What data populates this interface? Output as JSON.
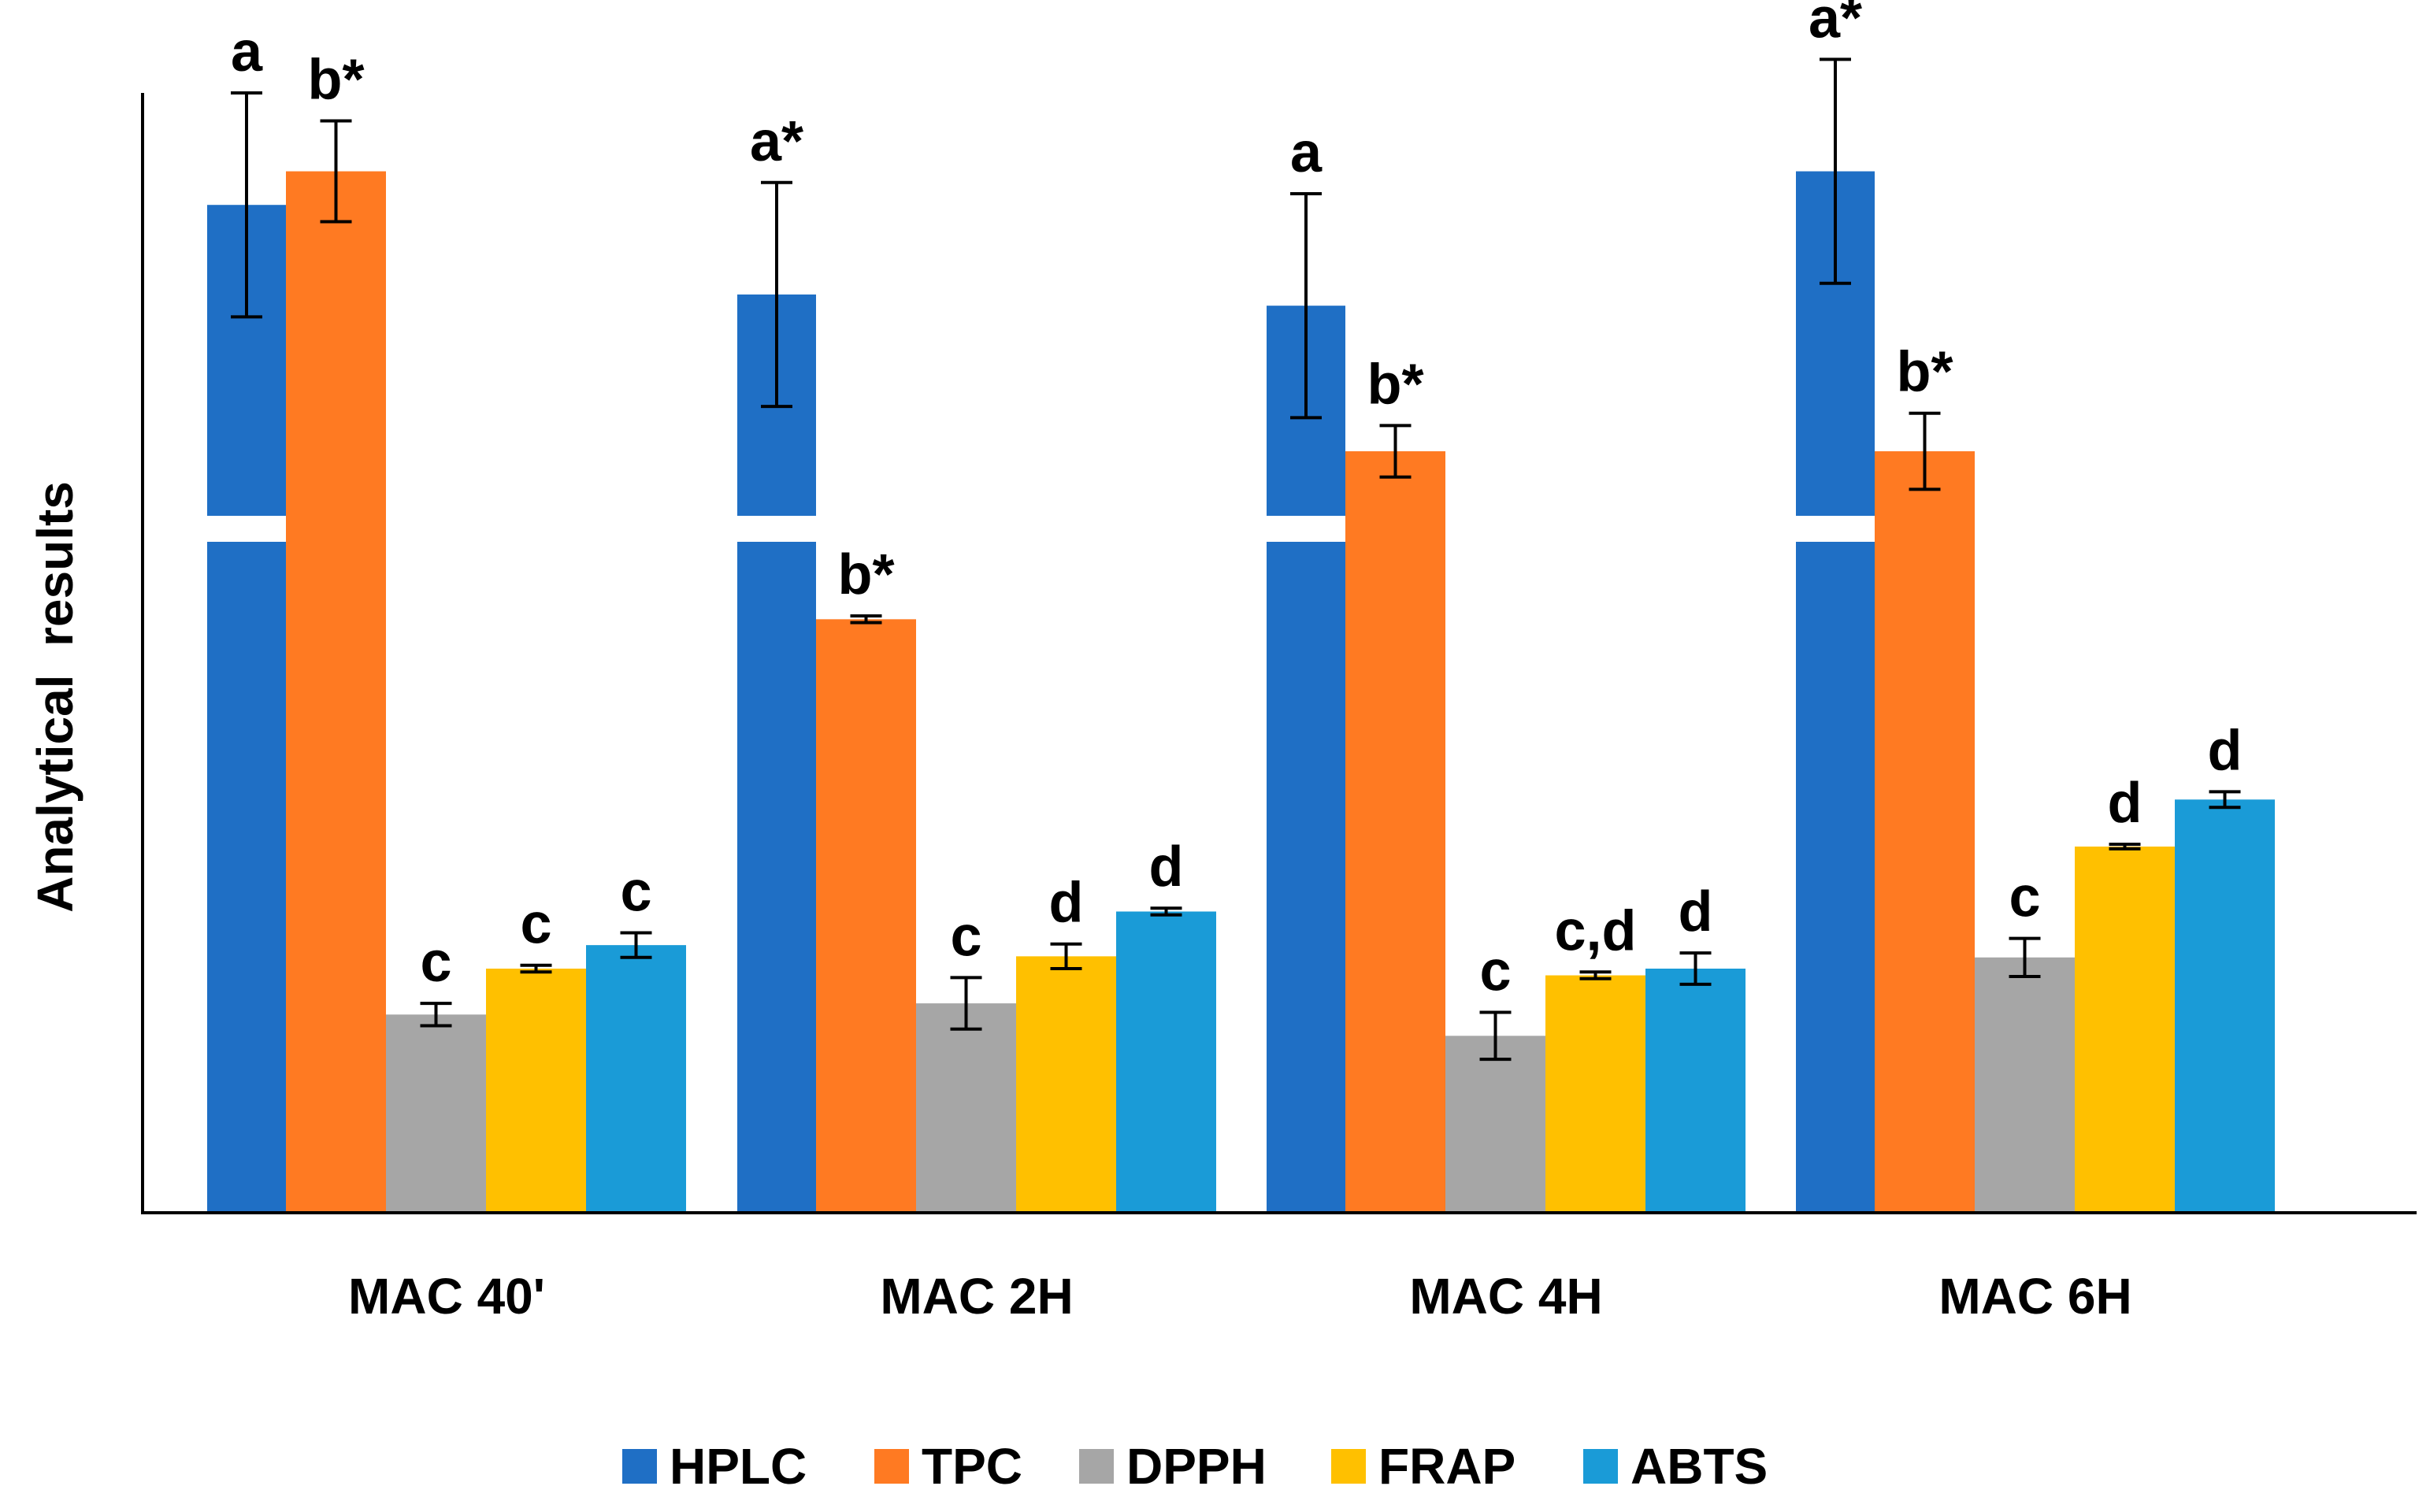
{
  "chart_data": {
    "type": "bar",
    "title": "",
    "xlabel": "",
    "ylabel": "Analytical  results",
    "ylim": [
      0,
      100
    ],
    "grid": false,
    "axis_break": "HPLC bars broken at about 70",
    "legend_position": "bottom",
    "categories": [
      "MAC 40'",
      "MAC 2H",
      "MAC 4H",
      "MAC 6H"
    ],
    "series": [
      {
        "name": "HPLC",
        "color": "#1F6FC5",
        "values": [
          90,
          82,
          81,
          93
        ],
        "errors": [
          10,
          10,
          10,
          10
        ],
        "labels": [
          "a",
          "a*",
          "a",
          "a*"
        ]
      },
      {
        "name": "TPC",
        "color": "#FF7A22",
        "values": [
          93,
          53,
          68,
          68
        ],
        "errors": [
          4.5,
          0.3,
          2.3,
          3.4
        ],
        "labels": [
          "b*",
          "b*",
          "b*",
          "b*"
        ]
      },
      {
        "name": "DPPH",
        "color": "#A6A6A6",
        "values": [
          17.7,
          18.7,
          15.8,
          22.8
        ],
        "errors": [
          1.0,
          2.3,
          2.1,
          1.7
        ],
        "labels": [
          "c",
          "c",
          "c",
          "c"
        ]
      },
      {
        "name": "FRAP",
        "color": "#FFC000",
        "values": [
          21.8,
          22.9,
          21.2,
          32.7
        ],
        "errors": [
          0.3,
          1.1,
          0.3,
          0.2
        ],
        "labels": [
          "c",
          "d",
          "c,d",
          "d"
        ]
      },
      {
        "name": "ABTS",
        "color": "#1A9BD7",
        "values": [
          23.9,
          26.9,
          21.8,
          36.9
        ],
        "errors": [
          1.1,
          0.3,
          1.4,
          0.7
        ],
        "labels": [
          "c",
          "d",
          "d",
          "d"
        ]
      }
    ]
  }
}
